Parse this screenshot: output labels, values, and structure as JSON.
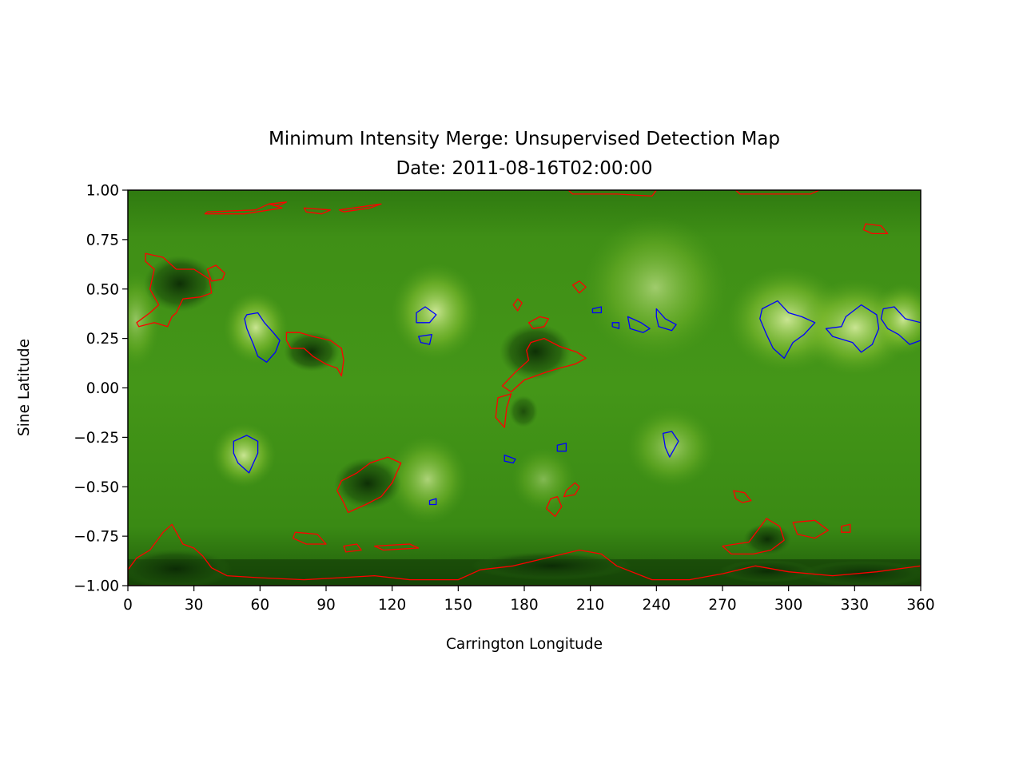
{
  "chart_data": {
    "type": "heatmap",
    "title": "Minimum Intensity Merge: Unsupervised Detection Map",
    "subtitle": "Date: 2011-08-16T02:00:00",
    "xlabel": "Carrington Longitude",
    "ylabel": "Sine Latitude",
    "xlim": [
      0,
      360
    ],
    "ylim": [
      -1.0,
      1.0
    ],
    "x_ticks": [
      0,
      30,
      60,
      90,
      120,
      150,
      180,
      210,
      240,
      270,
      300,
      330,
      360
    ],
    "y_ticks": [
      -1.0,
      -0.75,
      -0.5,
      -0.25,
      0.0,
      0.25,
      0.5,
      0.75,
      1.0
    ],
    "y_tick_labels": [
      "−1.00",
      "−0.75",
      "−0.50",
      "−0.25",
      "0.00",
      "0.25",
      "0.50",
      "0.75",
      "1.00"
    ],
    "grid": false,
    "colors": {
      "map_base": "#3f8f16",
      "map_dark": "#0b2a05",
      "map_bright": "#d8eea0",
      "coronal_hole_contour": "#ff0000",
      "active_region_contour": "#0000ff"
    },
    "red_regions": [
      {
        "pts": [
          [
            8,
            0.68
          ],
          [
            16,
            0.66
          ],
          [
            22,
            0.6
          ],
          [
            30,
            0.6
          ],
          [
            37,
            0.55
          ],
          [
            38,
            0.48
          ],
          [
            33,
            0.46
          ],
          [
            25,
            0.45
          ],
          [
            22,
            0.38
          ],
          [
            20,
            0.36
          ],
          [
            18,
            0.31
          ],
          [
            12,
            0.33
          ],
          [
            5,
            0.31
          ],
          [
            4,
            0.33
          ],
          [
            10,
            0.38
          ],
          [
            14,
            0.42
          ],
          [
            10,
            0.5
          ],
          [
            12,
            0.6
          ],
          [
            8,
            0.64
          ]
        ]
      },
      {
        "pts": [
          [
            36,
            0.6
          ],
          [
            40,
            0.62
          ],
          [
            44,
            0.58
          ],
          [
            43,
            0.55
          ],
          [
            38,
            0.54
          ],
          [
            37,
            0.57
          ]
        ]
      },
      {
        "pts": [
          [
            72,
            0.28
          ],
          [
            78,
            0.28
          ],
          [
            84,
            0.26
          ],
          [
            92,
            0.24
          ],
          [
            97,
            0.2
          ],
          [
            98,
            0.14
          ],
          [
            97,
            0.06
          ],
          [
            95,
            0.1
          ],
          [
            90,
            0.12
          ],
          [
            84,
            0.16
          ],
          [
            80,
            0.2
          ],
          [
            74,
            0.2
          ],
          [
            72,
            0.24
          ]
        ]
      },
      {
        "pts": [
          [
            183,
            0.23
          ],
          [
            189,
            0.25
          ],
          [
            196,
            0.21
          ],
          [
            204,
            0.18
          ],
          [
            208,
            0.15
          ],
          [
            203,
            0.12
          ],
          [
            196,
            0.1
          ],
          [
            190,
            0.08
          ],
          [
            185,
            0.06
          ],
          [
            180,
            0.04
          ],
          [
            174,
            -0.02
          ],
          [
            170,
            0.01
          ],
          [
            176,
            0.08
          ],
          [
            182,
            0.14
          ],
          [
            181,
            0.19
          ]
        ]
      },
      {
        "pts": [
          [
            182,
            0.33
          ],
          [
            187,
            0.36
          ],
          [
            191,
            0.35
          ],
          [
            189,
            0.31
          ],
          [
            184,
            0.3
          ]
        ]
      },
      {
        "pts": [
          [
            175,
            0.42
          ],
          [
            177,
            0.45
          ],
          [
            179,
            0.43
          ],
          [
            177,
            0.39
          ]
        ]
      },
      {
        "pts": [
          [
            168,
            -0.05
          ],
          [
            174,
            -0.03
          ],
          [
            172,
            -0.1
          ],
          [
            171,
            -0.2
          ],
          [
            167,
            -0.15
          ]
        ]
      },
      {
        "pts": [
          [
            202,
            0.52
          ],
          [
            205,
            0.54
          ],
          [
            208,
            0.51
          ],
          [
            205,
            0.48
          ]
        ]
      },
      {
        "pts": [
          [
            97,
            -0.47
          ],
          [
            104,
            -0.43
          ],
          [
            110,
            -0.38
          ],
          [
            118,
            -0.35
          ],
          [
            124,
            -0.38
          ],
          [
            120,
            -0.48
          ],
          [
            115,
            -0.55
          ],
          [
            108,
            -0.59
          ],
          [
            100,
            -0.63
          ],
          [
            98,
            -0.58
          ],
          [
            95,
            -0.52
          ]
        ]
      },
      {
        "pts": [
          [
            198,
            -0.55
          ],
          [
            203,
            -0.54
          ],
          [
            205,
            -0.5
          ],
          [
            203,
            -0.48
          ],
          [
            199,
            -0.52
          ]
        ]
      },
      {
        "pts": [
          [
            190,
            -0.61
          ],
          [
            194,
            -0.65
          ],
          [
            197,
            -0.6
          ],
          [
            195,
            -0.55
          ],
          [
            192,
            -0.56
          ]
        ]
      },
      {
        "pts": [
          [
            275,
            -0.52
          ],
          [
            280,
            -0.53
          ],
          [
            283,
            -0.57
          ],
          [
            279,
            -0.58
          ],
          [
            276,
            -0.56
          ]
        ]
      },
      {
        "pts": [
          [
            270,
            -0.8
          ],
          [
            282,
            -0.78
          ],
          [
            286,
            -0.72
          ],
          [
            290,
            -0.66
          ],
          [
            296,
            -0.7
          ],
          [
            298,
            -0.77
          ],
          [
            292,
            -0.82
          ],
          [
            284,
            -0.84
          ],
          [
            274,
            -0.84
          ]
        ]
      },
      {
        "pts": [
          [
            302,
            -0.68
          ],
          [
            312,
            -0.67
          ],
          [
            318,
            -0.72
          ],
          [
            312,
            -0.76
          ],
          [
            304,
            -0.74
          ]
        ]
      },
      {
        "pts": [
          [
            324,
            -0.7
          ],
          [
            328,
            -0.69
          ],
          [
            328,
            -0.73
          ],
          [
            324,
            -0.73
          ]
        ]
      },
      {
        "pts": [
          [
            0,
            -0.92
          ],
          [
            4,
            -0.86
          ],
          [
            10,
            -0.82
          ],
          [
            16,
            -0.73
          ],
          [
            20,
            -0.69
          ],
          [
            25,
            -0.79
          ],
          [
            30,
            -0.81
          ],
          [
            34,
            -0.85
          ],
          [
            38,
            -0.91
          ],
          [
            45,
            -0.95
          ],
          [
            60,
            -0.96
          ],
          [
            80,
            -0.97
          ],
          [
            96,
            -0.96
          ],
          [
            112,
            -0.95
          ],
          [
            128,
            -0.97
          ],
          [
            150,
            -0.97
          ],
          [
            160,
            -0.92
          ],
          [
            175,
            -0.9
          ],
          [
            190,
            -0.86
          ],
          [
            205,
            -0.82
          ],
          [
            215,
            -0.84
          ],
          [
            222,
            -0.9
          ],
          [
            238,
            -0.97
          ],
          [
            255,
            -0.97
          ],
          [
            270,
            -0.94
          ],
          [
            285,
            -0.9
          ],
          [
            300,
            -0.93
          ],
          [
            320,
            -0.95
          ],
          [
            340,
            -0.93
          ],
          [
            360,
            -0.9
          ],
          [
            360,
            -1.0
          ],
          [
            0,
            -1.0
          ]
        ]
      },
      {
        "pts": [
          [
            76,
            -0.73
          ],
          [
            86,
            -0.74
          ],
          [
            90,
            -0.79
          ],
          [
            81,
            -0.79
          ],
          [
            75,
            -0.76
          ]
        ]
      },
      {
        "pts": [
          [
            98,
            -0.8
          ],
          [
            104,
            -0.79
          ],
          [
            106,
            -0.82
          ],
          [
            99,
            -0.83
          ]
        ]
      },
      {
        "pts": [
          [
            112,
            -0.8
          ],
          [
            128,
            -0.79
          ],
          [
            132,
            -0.81
          ],
          [
            116,
            -0.82
          ]
        ]
      },
      {
        "pts": [
          [
            36,
            0.89
          ],
          [
            58,
            0.9
          ],
          [
            64,
            0.93
          ],
          [
            70,
            0.91
          ],
          [
            53,
            0.88
          ],
          [
            35,
            0.88
          ]
        ]
      },
      {
        "pts": [
          [
            64,
            0.93
          ],
          [
            72,
            0.94
          ],
          [
            68,
            0.92
          ]
        ]
      },
      {
        "pts": [
          [
            80,
            0.91
          ],
          [
            92,
            0.9
          ],
          [
            88,
            0.88
          ],
          [
            81,
            0.89
          ]
        ]
      },
      {
        "pts": [
          [
            96,
            0.9
          ],
          [
            115,
            0.93
          ],
          [
            110,
            0.91
          ],
          [
            98,
            0.89
          ]
        ]
      },
      {
        "pts": [
          [
            200,
            1.0
          ],
          [
            240,
            1.0
          ],
          [
            238,
            0.97
          ],
          [
            222,
            0.98
          ],
          [
            202,
            0.98
          ]
        ]
      },
      {
        "pts": [
          [
            276,
            1.0
          ],
          [
            314,
            1.0
          ],
          [
            310,
            0.98
          ],
          [
            290,
            0.98
          ],
          [
            278,
            0.98
          ]
        ]
      },
      {
        "pts": [
          [
            335,
            0.83
          ],
          [
            342,
            0.82
          ],
          [
            345,
            0.78
          ],
          [
            338,
            0.78
          ],
          [
            334,
            0.8
          ]
        ]
      }
    ],
    "blue_regions": [
      {
        "pts": [
          [
            54,
            0.37
          ],
          [
            59,
            0.38
          ],
          [
            62,
            0.33
          ],
          [
            66,
            0.28
          ],
          [
            69,
            0.24
          ],
          [
            67,
            0.18
          ],
          [
            63,
            0.13
          ],
          [
            59,
            0.16
          ],
          [
            57,
            0.22
          ],
          [
            54,
            0.3
          ],
          [
            53,
            0.35
          ]
        ]
      },
      {
        "pts": [
          [
            131,
            0.38
          ],
          [
            135,
            0.41
          ],
          [
            140,
            0.37
          ],
          [
            137,
            0.33
          ],
          [
            131,
            0.33
          ]
        ]
      },
      {
        "pts": [
          [
            132,
            0.26
          ],
          [
            138,
            0.27
          ],
          [
            137,
            0.22
          ],
          [
            133,
            0.23
          ]
        ]
      },
      {
        "pts": [
          [
            48,
            -0.27
          ],
          [
            54,
            -0.24
          ],
          [
            59,
            -0.27
          ],
          [
            59,
            -0.33
          ],
          [
            55,
            -0.43
          ],
          [
            50,
            -0.38
          ],
          [
            48,
            -0.33
          ]
        ]
      },
      {
        "pts": [
          [
            137,
            -0.57
          ],
          [
            140,
            -0.56
          ],
          [
            140,
            -0.59
          ],
          [
            137,
            -0.59
          ]
        ]
      },
      {
        "pts": [
          [
            171,
            -0.34
          ],
          [
            176,
            -0.36
          ],
          [
            175,
            -0.38
          ],
          [
            171,
            -0.37
          ]
        ]
      },
      {
        "pts": [
          [
            195,
            -0.29
          ],
          [
            199,
            -0.28
          ],
          [
            199,
            -0.32
          ],
          [
            195,
            -0.32
          ]
        ]
      },
      {
        "pts": [
          [
            243,
            -0.23
          ],
          [
            247,
            -0.22
          ],
          [
            250,
            -0.27
          ],
          [
            246,
            -0.35
          ],
          [
            244,
            -0.3
          ]
        ]
      },
      {
        "pts": [
          [
            211,
            0.4
          ],
          [
            215,
            0.41
          ],
          [
            215,
            0.38
          ],
          [
            211,
            0.38
          ]
        ]
      },
      {
        "pts": [
          [
            220,
            0.33
          ],
          [
            223,
            0.33
          ],
          [
            223,
            0.3
          ],
          [
            220,
            0.31
          ]
        ]
      },
      {
        "pts": [
          [
            227,
            0.36
          ],
          [
            233,
            0.33
          ],
          [
            237,
            0.3
          ],
          [
            234,
            0.28
          ],
          [
            228,
            0.3
          ]
        ]
      },
      {
        "pts": [
          [
            240,
            0.4
          ],
          [
            244,
            0.35
          ],
          [
            249,
            0.32
          ],
          [
            247,
            0.29
          ],
          [
            241,
            0.31
          ],
          [
            240,
            0.36
          ]
        ]
      },
      {
        "pts": [
          [
            288,
            0.4
          ],
          [
            295,
            0.44
          ],
          [
            300,
            0.38
          ],
          [
            306,
            0.36
          ],
          [
            312,
            0.33
          ],
          [
            307,
            0.27
          ],
          [
            302,
            0.23
          ],
          [
            298,
            0.15
          ],
          [
            293,
            0.2
          ],
          [
            290,
            0.27
          ],
          [
            287,
            0.35
          ]
        ]
      },
      {
        "pts": [
          [
            326,
            0.36
          ],
          [
            333,
            0.42
          ],
          [
            340,
            0.37
          ],
          [
            341,
            0.3
          ],
          [
            338,
            0.22
          ],
          [
            333,
            0.18
          ],
          [
            329,
            0.23
          ],
          [
            320,
            0.26
          ],
          [
            317,
            0.3
          ],
          [
            324,
            0.31
          ]
        ]
      },
      {
        "pts": [
          [
            343,
            0.4
          ],
          [
            348,
            0.41
          ],
          [
            353,
            0.35
          ],
          [
            360,
            0.33
          ],
          [
            360,
            0.24
          ],
          [
            355,
            0.22
          ],
          [
            350,
            0.27
          ],
          [
            345,
            0.3
          ],
          [
            342,
            0.35
          ]
        ]
      }
    ]
  }
}
